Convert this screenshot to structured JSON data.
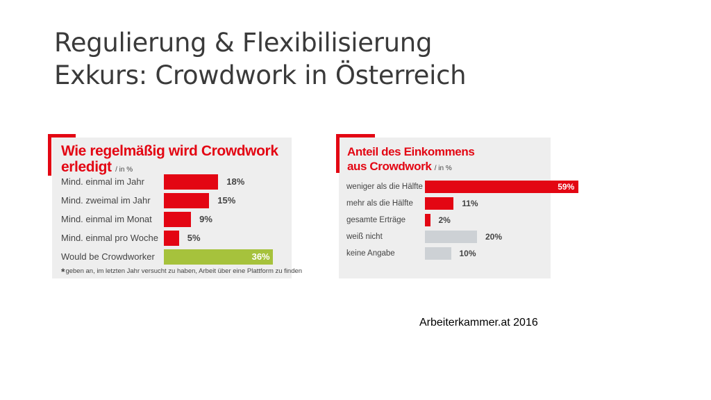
{
  "slide": {
    "title_line1": "Regulierung & Flexibilisierung",
    "title_line2": "Exkurs: Crowdwork in Österreich",
    "source": "Arbeiterkammer.at 2016"
  },
  "colors": {
    "red": "#e30613",
    "green": "#a6c23c",
    "grey": "#cdd1d5",
    "panel": "#eeeeee"
  },
  "chart_data": [
    {
      "type": "bar",
      "orientation": "horizontal",
      "title_line1": "Wie regelmäßig wird Crowdwork",
      "title_line2": "erledigt",
      "unit": "/ in %",
      "categories": [
        "Mind. einmal im Jahr",
        "Mind. zweimal im Jahr",
        "Mind. einmal im Monat",
        "Mind. einmal pro Woche",
        "Would be Crowdworker"
      ],
      "values": [
        18,
        15,
        9,
        5,
        36
      ],
      "value_labels": [
        "18%",
        "15%",
        "9%",
        "5%",
        "36%"
      ],
      "bar_colors": [
        "#e30613",
        "#e30613",
        "#e30613",
        "#e30613",
        "#a6c23c"
      ],
      "footnote_marker": "*",
      "footnote": "geben an, im letzten Jahr versucht zu haben, Arbeit über eine Plattform zu finden"
    },
    {
      "type": "bar",
      "orientation": "horizontal",
      "title_line1": "Anteil des Einkommens",
      "title_line2": "aus Crowdwork",
      "unit": "/ in %",
      "categories": [
        "weniger als die Hälfte",
        "mehr als die Hälfte",
        "gesamte Erträge",
        "weiß nicht",
        "keine Angabe"
      ],
      "values": [
        59,
        11,
        2,
        20,
        10
      ],
      "value_labels": [
        "59%",
        "11%",
        "2%",
        "20%",
        "10%"
      ],
      "bar_colors": [
        "#e30613",
        "#e30613",
        "#e30613",
        "#cdd1d5",
        "#cdd1d5"
      ]
    }
  ]
}
